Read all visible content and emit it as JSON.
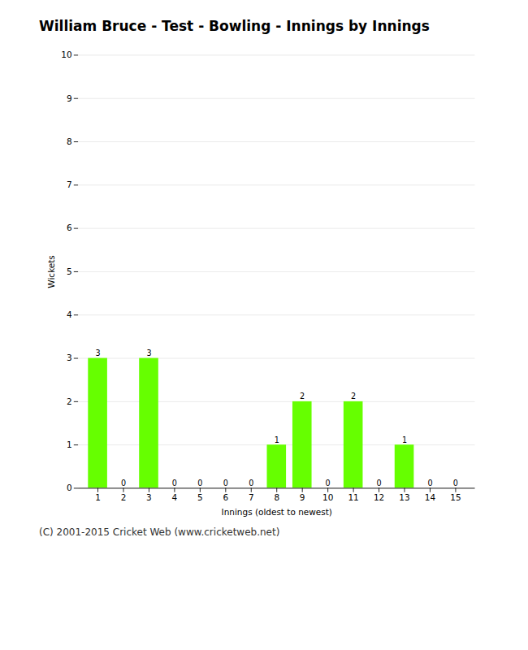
{
  "chart_data": {
    "type": "bar",
    "title": "William Bruce - Test - Bowling - Innings by Innings",
    "xlabel": "Innings (oldest to newest)",
    "ylabel": "Wickets",
    "annotations": [
      "(C) 2001-2015 Cricket Web (www.cricketweb.net)"
    ],
    "categories": [
      "1",
      "2",
      "3",
      "4",
      "5",
      "6",
      "7",
      "8",
      "9",
      "10",
      "11",
      "12",
      "13",
      "14",
      "15"
    ],
    "values": [
      3,
      0,
      3,
      0,
      0,
      0,
      0,
      1,
      2,
      0,
      2,
      0,
      1,
      0,
      0
    ],
    "color": "#66ff00",
    "ylim": [
      0,
      10
    ],
    "yticks": [
      0,
      1,
      2,
      3,
      4,
      5,
      6,
      7,
      8,
      9,
      10
    ],
    "grid": true,
    "data_labels": true
  }
}
